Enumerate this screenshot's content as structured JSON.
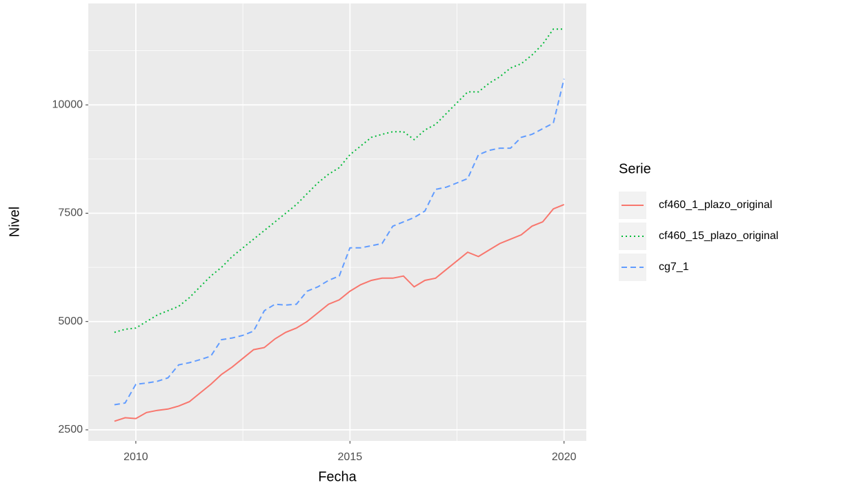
{
  "chart_data": {
    "type": "line",
    "x_label": "Fecha",
    "y_label": "Nivel",
    "legend_title": "Serie",
    "legend_position": "right",
    "x": [
      2009.5,
      2009.75,
      2010.0,
      2010.25,
      2010.5,
      2010.75,
      2011.0,
      2011.25,
      2011.5,
      2011.75,
      2012.0,
      2012.25,
      2012.5,
      2012.75,
      2013.0,
      2013.25,
      2013.5,
      2013.75,
      2014.0,
      2014.25,
      2014.5,
      2014.75,
      2015.0,
      2015.25,
      2015.5,
      2015.75,
      2016.0,
      2016.25,
      2016.5,
      2016.75,
      2017.0,
      2017.25,
      2017.5,
      2017.75,
      2018.0,
      2018.25,
      2018.5,
      2018.75,
      2019.0,
      2019.25,
      2019.5,
      2019.75,
      2020.0
    ],
    "series": [
      {
        "name": "cf460_1_plazo_original",
        "color": "#F8766D",
        "linetype": "solid",
        "values": [
          2700,
          2780,
          2760,
          2900,
          2950,
          2980,
          3050,
          3150,
          3350,
          3550,
          3780,
          3950,
          4150,
          4350,
          4400,
          4600,
          4750,
          4850,
          5000,
          5200,
          5400,
          5500,
          5700,
          5850,
          5950,
          6000,
          6000,
          6050,
          5800,
          5950,
          6000,
          6200,
          6400,
          6600,
          6500,
          6650,
          6800,
          6900,
          7000,
          7200,
          7300,
          7600,
          7700
        ]
      },
      {
        "name": "cf460_15_plazo_original",
        "color": "#00BA38",
        "linetype": "dotted",
        "values": [
          4750,
          4820,
          4850,
          5000,
          5150,
          5250,
          5350,
          5550,
          5800,
          6050,
          6250,
          6500,
          6700,
          6900,
          7100,
          7300,
          7500,
          7700,
          7950,
          8200,
          8400,
          8550,
          8850,
          9050,
          9250,
          9320,
          9380,
          9380,
          9200,
          9420,
          9550,
          9800,
          10050,
          10300,
          10300,
          10500,
          10650,
          10850,
          10950,
          11150,
          11400,
          11750,
          11750
        ]
      },
      {
        "name": "cg7_1",
        "color": "#619CFF",
        "linetype": "dashed",
        "values": [
          3080,
          3120,
          3550,
          3580,
          3620,
          3700,
          4000,
          4050,
          4120,
          4200,
          4580,
          4620,
          4680,
          4780,
          5250,
          5400,
          5380,
          5400,
          5700,
          5800,
          5950,
          6050,
          6700,
          6700,
          6750,
          6800,
          7200,
          7300,
          7400,
          7550,
          8050,
          8100,
          8200,
          8300,
          8850,
          8950,
          9000,
          9000,
          9250,
          9320,
          9450,
          9580,
          10600
        ]
      }
    ],
    "xlim": [
      2008.89,
      2020.52
    ],
    "xticks": [
      2010,
      2015,
      2020
    ],
    "xminor": [
      2012.5,
      2017.5
    ],
    "ylim": [
      2245,
      12341
    ],
    "yticks": [
      2500,
      5000,
      7500,
      10000
    ],
    "yminor": [
      3750,
      6250,
      8750,
      11250
    ],
    "grid": true
  }
}
